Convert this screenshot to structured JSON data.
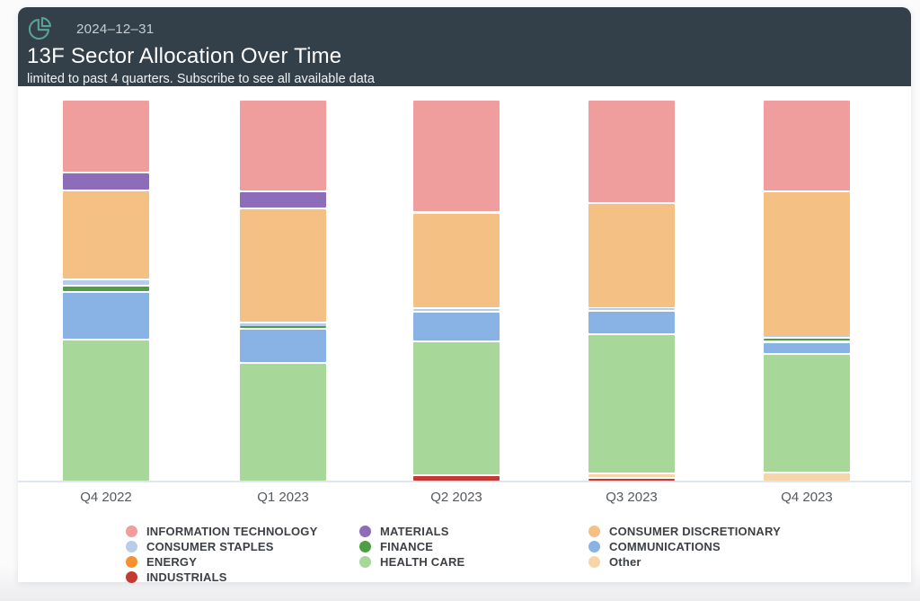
{
  "header": {
    "date": "2024–12–31",
    "title": "13F Sector Allocation Over Time",
    "subtitle": "limited to past 4 quarters. Subscribe to see all available data"
  },
  "colors": {
    "information_technology": "#f09d9d",
    "materials": "#8d6cba",
    "consumer_discretionary": "#f5c083",
    "consumer_staples": "#b9cdea",
    "finance": "#4f9e43",
    "communications": "#88b3e4",
    "energy": "#f5912e",
    "health_care": "#a8d79a",
    "industrials": "#c23a31",
    "other": "#f8d5a6",
    "header_bg": "#334049",
    "icon_teal": "#5aa296",
    "axis_line": "#dfe5f3"
  },
  "chart_data": {
    "type": "bar",
    "variant": "stacked-100-percent",
    "unit": "percent of portfolio",
    "title": "13F Sector Allocation Over Time",
    "xlabel": "",
    "ylabel": "",
    "ylim": [
      0,
      100
    ],
    "grid": false,
    "legend_position": "bottom",
    "categories": [
      "Q4 2022",
      "Q1 2023",
      "Q2 2023",
      "Q3 2023",
      "Q4 2023"
    ],
    "stack_order_bottom_to_top": [
      "industrials",
      "other",
      "health_care",
      "communications",
      "finance",
      "consumer_staples",
      "consumer_discretionary",
      "materials",
      "information_technology"
    ],
    "series": [
      {
        "key": "information_technology",
        "name": "INFORMATION TECHNOLOGY",
        "values": [
          19.0,
          24.0,
          29.5,
          27.0,
          24.0
        ]
      },
      {
        "key": "materials",
        "name": "MATERIALS",
        "values": [
          4.8,
          4.5,
          0,
          0,
          0
        ]
      },
      {
        "key": "consumer_discretionary",
        "name": "CONSUMER DISCRETIONARY",
        "values": [
          23.3,
          29.8,
          25.2,
          27.5,
          38.0
        ]
      },
      {
        "key": "consumer_staples",
        "name": "CONSUMER STAPLES",
        "values": [
          1.5,
          1.2,
          0.8,
          0.8,
          0.4
        ]
      },
      {
        "key": "finance",
        "name": "FINANCE",
        "values": [
          1.7,
          0.5,
          0,
          0,
          1.0
        ]
      },
      {
        "key": "communications",
        "name": "COMMUNICATIONS",
        "values": [
          12.5,
          8.9,
          7.7,
          6.0,
          3.2
        ]
      },
      {
        "key": "health_care",
        "name": "HEALTH CARE",
        "values": [
          37.2,
          31.1,
          35.1,
          36.6,
          31.0
        ]
      },
      {
        "key": "energy",
        "name": "ENERGY",
        "values": [
          0,
          0,
          0,
          0,
          0
        ]
      },
      {
        "key": "industrials",
        "name": "INDUSTRIALS",
        "values": [
          0,
          0,
          1.7,
          0.9,
          0
        ]
      },
      {
        "key": "other",
        "name": "Other",
        "values": [
          0,
          0,
          0,
          1.2,
          2.4
        ]
      }
    ]
  },
  "legend": {
    "columns": [
      [
        {
          "key": "information_technology",
          "label": "INFORMATION TECHNOLOGY"
        },
        {
          "key": "consumer_staples",
          "label": "CONSUMER STAPLES"
        },
        {
          "key": "energy",
          "label": "ENERGY"
        },
        {
          "key": "industrials",
          "label": "INDUSTRIALS"
        }
      ],
      [
        {
          "key": "materials",
          "label": "MATERIALS"
        },
        {
          "key": "finance",
          "label": "FINANCE"
        },
        {
          "key": "health_care",
          "label": "HEALTH CARE"
        }
      ],
      [
        {
          "key": "consumer_discretionary",
          "label": "CONSUMER DISCRETIONARY"
        },
        {
          "key": "communications",
          "label": "COMMUNICATIONS"
        },
        {
          "key": "other",
          "label": "Other"
        }
      ]
    ]
  }
}
